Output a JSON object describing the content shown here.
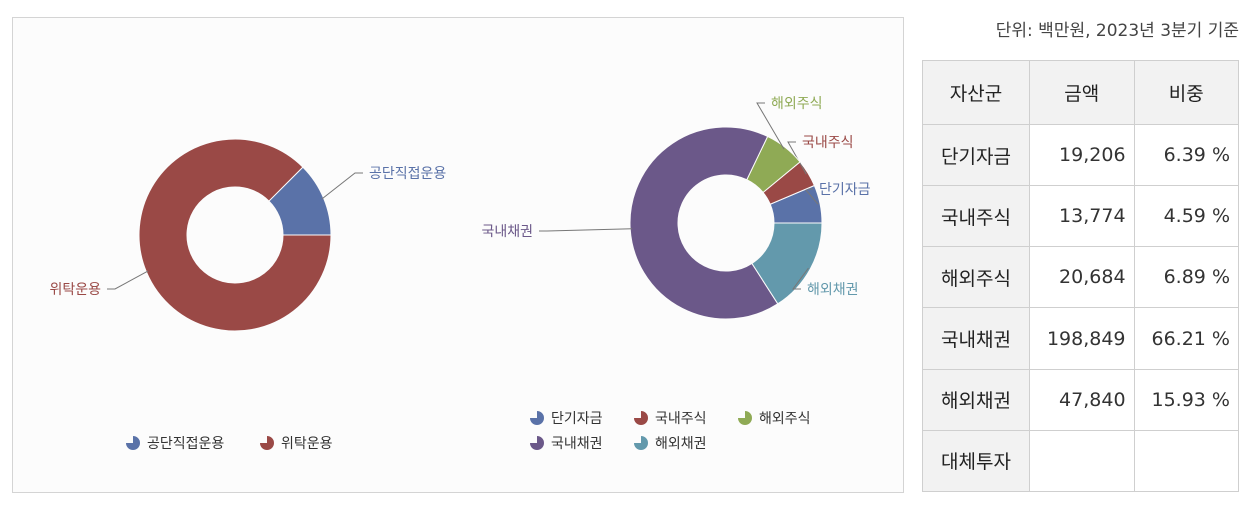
{
  "unit_note": "단위: 백만원, 2023년 3분기 기준",
  "table": {
    "headers": [
      "자산군",
      "금액",
      "비중"
    ],
    "rows": [
      {
        "name": "단기자금",
        "amount": "19,206",
        "ratio": "6.39 %"
      },
      {
        "name": "국내주식",
        "amount": "13,774",
        "ratio": "4.59 %"
      },
      {
        "name": "해외주식",
        "amount": "20,684",
        "ratio": "6.89 %"
      },
      {
        "name": "국내채권",
        "amount": "198,849",
        "ratio": "66.21 %"
      },
      {
        "name": "해외채권",
        "amount": "47,840",
        "ratio": "15.93 %"
      },
      {
        "name": "대체투자",
        "amount": "",
        "ratio": ""
      }
    ]
  },
  "chart_data": [
    {
      "type": "pie",
      "donut": true,
      "slices": [
        {
          "label": "공단직접운용",
          "value": 12.5,
          "color": "#5a72a8"
        },
        {
          "label": "위탁운용",
          "value": 87.5,
          "color": "#9a4946"
        }
      ],
      "legend": [
        "공단직접운용",
        "위탁운용"
      ],
      "legend_position": "bottom"
    },
    {
      "type": "pie",
      "donut": true,
      "slices": [
        {
          "label": "단기자금",
          "value": 6.39,
          "color": "#5a72a8"
        },
        {
          "label": "국내주식",
          "value": 4.59,
          "color": "#9a4946"
        },
        {
          "label": "해외주식",
          "value": 6.89,
          "color": "#8faa55"
        },
        {
          "label": "국내채권",
          "value": 66.21,
          "color": "#6b5889"
        },
        {
          "label": "해외채권",
          "value": 15.93,
          "color": "#6399ac"
        }
      ],
      "legend": [
        "단기자금",
        "국내주식",
        "해외주식",
        "국내채권",
        "해외채권"
      ],
      "legend_position": "bottom"
    }
  ]
}
